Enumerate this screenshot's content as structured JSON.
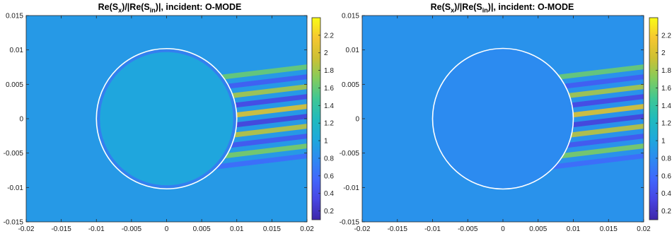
{
  "chart_data": [
    {
      "type": "heatmap",
      "title_parts": {
        "a": "Re(S",
        "b": "x",
        "c": ")/|Re(S",
        "d": "in",
        "e": ")|, incident: O-MODE"
      },
      "xlim": [
        -0.02,
        0.02
      ],
      "ylim": [
        -0.015,
        0.015
      ],
      "xticks": [
        "-0.02",
        "-0.015",
        "-0.01",
        "-0.005",
        "0",
        "0.005",
        "0.01",
        "0.015",
        "0.02"
      ],
      "yticks": [
        "0.015",
        "0.01",
        "0.005",
        "0",
        "-0.005",
        "-0.01",
        "-0.015"
      ],
      "colorbar": {
        "min": 0.1,
        "max": 2.4,
        "ticks": [
          "2.2",
          "2",
          "1.8",
          "1.6",
          "1.4",
          "1.2",
          "1",
          "0.8",
          "0.6",
          "0.4",
          "0.2"
        ]
      },
      "circle": {
        "center": [
          0,
          0
        ],
        "radius": 0.01
      },
      "background_value": 0.9,
      "inside_value": 1.0,
      "colormap": "parula"
    },
    {
      "type": "heatmap",
      "title_parts": {
        "a": "Re(S",
        "b": "x",
        "c": ")/|Re(S",
        "d": "in",
        "e": ")|, incident: O-MODE"
      },
      "xlim": [
        -0.02,
        0.02
      ],
      "ylim": [
        -0.015,
        0.015
      ],
      "xticks": [
        "-0.02",
        "-0.015",
        "-0.01",
        "-0.005",
        "0",
        "0.005",
        "0.01",
        "0.015",
        "0.02"
      ],
      "yticks": [
        "0.015",
        "0.01",
        "0.005",
        "0",
        "-0.005",
        "-0.01",
        "-0.015"
      ],
      "colorbar": {
        "min": 0.1,
        "max": 2.4,
        "ticks": [
          "2.2",
          "2",
          "1.8",
          "1.6",
          "1.4",
          "1.2",
          "1",
          "0.8",
          "0.6",
          "0.4",
          "0.2"
        ]
      },
      "circle": {
        "center": [
          0,
          0
        ],
        "radius": 0.01
      },
      "background_value": 0.85,
      "inside_value": 0.8,
      "colormap": "parula"
    }
  ]
}
